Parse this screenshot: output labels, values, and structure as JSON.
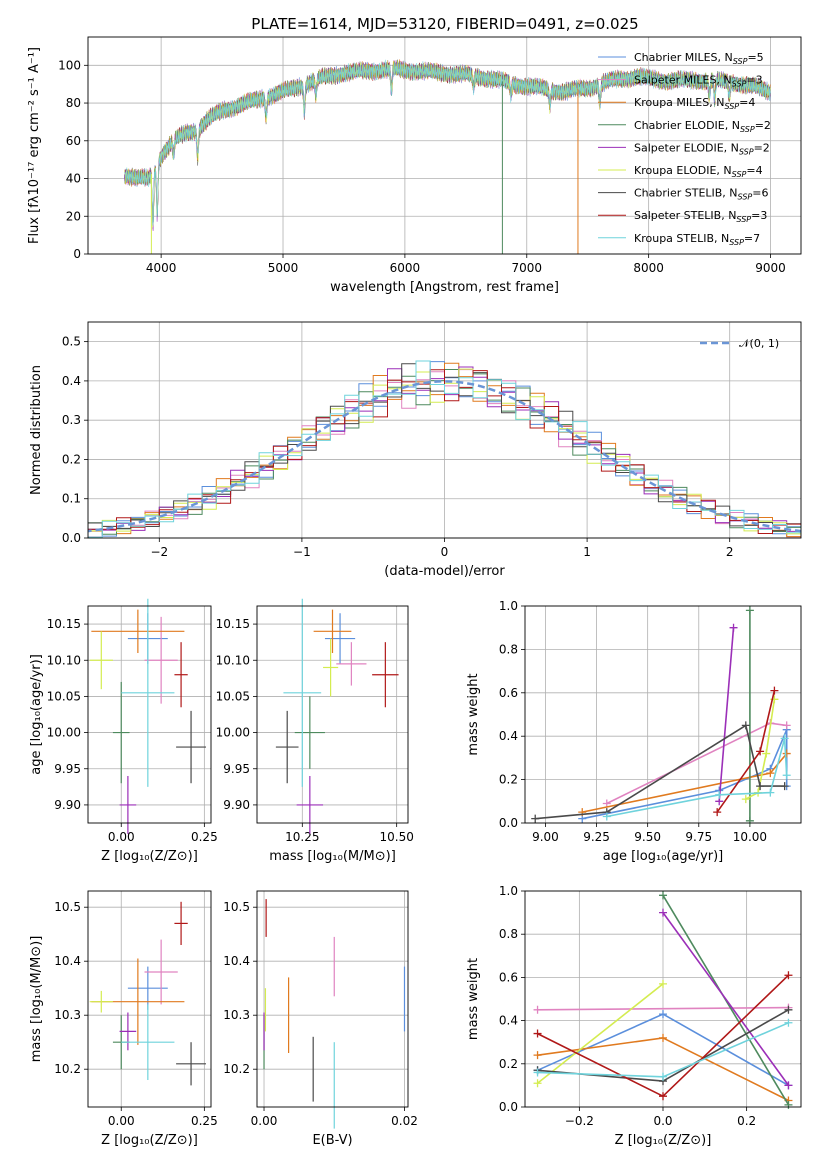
{
  "figure": {
    "title": "PLATE=1614, MJD=53120, FIBERID=0491, z=0.025"
  },
  "models": [
    {
      "name": "Chabrier MILES",
      "nssp": "5",
      "color": "#5b8fdc"
    },
    {
      "name": "Salpeter MILES",
      "nssp": "3",
      "color": "#e083c0"
    },
    {
      "name": "Kroupa MILES",
      "nssp": "4",
      "color": "#e07a1f"
    },
    {
      "name": "Chabrier ELODIE",
      "nssp": "2",
      "color": "#4e8a5e"
    },
    {
      "name": "Salpeter ELODIE",
      "nssp": "2",
      "color": "#9b2fb8"
    },
    {
      "name": "Kroupa ELODIE",
      "nssp": "4",
      "color": "#d4ec50"
    },
    {
      "name": "Chabrier STELIB",
      "nssp": "6",
      "color": "#4a4a4a"
    },
    {
      "name": "Salpeter STELIB",
      "nssp": "3",
      "color": "#b01818"
    },
    {
      "name": "Kroupa STELIB",
      "nssp": "7",
      "color": "#6fd3dc"
    }
  ],
  "chart_data": [
    {
      "id": "spectrum",
      "type": "line",
      "xlabel": "wavelength [Angstrom, rest frame]",
      "ylabel": "Flux [fλ10⁻¹⁷ erg cm⁻² s⁻¹ A⁻¹]",
      "xlim": [
        3400,
        9250
      ],
      "ylim": [
        0,
        115
      ],
      "xticks": [
        4000,
        5000,
        6000,
        7000,
        8000,
        9000
      ],
      "yticks": [
        0,
        20,
        40,
        60,
        80,
        100
      ],
      "continuum": [
        [
          3700,
          42
        ],
        [
          3800,
          40
        ],
        [
          3900,
          40
        ],
        [
          4000,
          52
        ],
        [
          4100,
          60
        ],
        [
          4200,
          64
        ],
        [
          4300,
          66
        ],
        [
          4400,
          72
        ],
        [
          4500,
          76
        ],
        [
          4700,
          80
        ],
        [
          4900,
          84
        ],
        [
          5100,
          88
        ],
        [
          5300,
          93
        ],
        [
          5500,
          96
        ],
        [
          5700,
          97
        ],
        [
          5900,
          98
        ],
        [
          6100,
          97
        ],
        [
          6300,
          96
        ],
        [
          6500,
          95
        ],
        [
          6700,
          93
        ],
        [
          6900,
          90
        ],
        [
          7100,
          88
        ],
        [
          7300,
          86
        ],
        [
          7500,
          88
        ],
        [
          7700,
          92
        ],
        [
          7900,
          94
        ],
        [
          8100,
          92
        ],
        [
          8300,
          92
        ],
        [
          8500,
          92
        ],
        [
          8700,
          91
        ],
        [
          8900,
          88
        ],
        [
          9000,
          86
        ]
      ],
      "absorption": [
        [
          3933,
          28
        ],
        [
          3968,
          26
        ],
        [
          4102,
          8
        ],
        [
          4300,
          14
        ],
        [
          4861,
          10
        ],
        [
          5175,
          14
        ],
        [
          5270,
          8
        ],
        [
          5890,
          12
        ],
        [
          6563,
          6
        ],
        [
          6870,
          6
        ],
        [
          7190,
          8
        ],
        [
          7600,
          10
        ],
        [
          8498,
          8
        ],
        [
          8542,
          10
        ],
        [
          8662,
          8
        ]
      ],
      "dropouts": [
        {
          "model": "Kroupa ELODIE",
          "x": 3920
        },
        {
          "model": "Chabrier ELODIE",
          "x": 6800
        },
        {
          "model": "Kroupa MILES",
          "x": 7420
        }
      ]
    },
    {
      "id": "residuals",
      "type": "histogram",
      "xlabel": "(data-model)/error",
      "ylabel": "Normed distribution",
      "xlim": [
        -2.5,
        2.5
      ],
      "ylim": [
        0,
        0.55
      ],
      "xticks": [
        -2,
        -1,
        0,
        1,
        2
      ],
      "yticks": [
        0.0,
        0.1,
        0.2,
        0.3,
        0.4,
        0.5
      ],
      "bin_width": 0.1,
      "reference": {
        "label": "𝒩(0, 1)",
        "mean": 0,
        "sigma": 1
      }
    },
    {
      "id": "age_vs_Z",
      "type": "errorbar",
      "xlabel": "Z [log₁₀(Z/Z⊙)]",
      "ylabel": "age  [log₁₀(age/yr)]",
      "xlim": [
        -0.1,
        0.27
      ],
      "ylim": [
        9.875,
        10.175
      ],
      "xticks": [
        0.0,
        0.25
      ],
      "yticks": [
        9.9,
        9.95,
        10.0,
        10.05,
        10.1,
        10.15
      ],
      "points": [
        {
          "model": "Chabrier MILES",
          "x": 0.08,
          "y": 10.13,
          "xerr": 0.06,
          "yerr": 0.035
        },
        {
          "model": "Salpeter MILES",
          "x": 0.12,
          "y": 10.1,
          "xerr": 0.05,
          "yerr": 0.06
        },
        {
          "model": "Kroupa MILES",
          "x": 0.05,
          "y": 10.14,
          "xerr": 0.14,
          "yerr": 0.03
        },
        {
          "model": "Chabrier ELODIE",
          "x": 0.0,
          "y": 10.0,
          "xerr": 0.025,
          "yerr": 0.07
        },
        {
          "model": "Salpeter ELODIE",
          "x": 0.02,
          "y": 9.9,
          "xerr": 0.025,
          "yerr": 0.04
        },
        {
          "model": "Kroupa ELODIE",
          "x": -0.06,
          "y": 10.1,
          "xerr": 0.035,
          "yerr": 0.04
        },
        {
          "model": "Chabrier STELIB",
          "x": 0.21,
          "y": 9.98,
          "xerr": 0.045,
          "yerr": 0.05
        },
        {
          "model": "Salpeter STELIB",
          "x": 0.18,
          "y": 10.08,
          "xerr": 0.02,
          "yerr": 0.045
        },
        {
          "model": "Kroupa STELIB",
          "x": 0.08,
          "y": 10.055,
          "xerr": 0.08,
          "yerr": 0.13
        }
      ]
    },
    {
      "id": "age_vs_mass",
      "type": "errorbar",
      "xlabel": "mass [log₁₀(M/M⊙)]",
      "ylabel": "",
      "xlim": [
        10.13,
        10.53
      ],
      "ylim": [
        9.875,
        10.175
      ],
      "xticks": [
        10.25,
        10.5
      ],
      "yticks": [
        9.9,
        9.95,
        10.0,
        10.05,
        10.1,
        10.15
      ],
      "points": [
        {
          "model": "Chabrier MILES",
          "x": 10.35,
          "y": 10.13,
          "xerr": 0.04,
          "yerr": 0.035
        },
        {
          "model": "Salpeter MILES",
          "x": 10.38,
          "y": 10.095,
          "xerr": 0.04,
          "yerr": 0.03
        },
        {
          "model": "Kroupa MILES",
          "x": 10.33,
          "y": 10.14,
          "xerr": 0.05,
          "yerr": 0.03
        },
        {
          "model": "Chabrier ELODIE",
          "x": 10.27,
          "y": 10.0,
          "xerr": 0.04,
          "yerr": 0.05
        },
        {
          "model": "Salpeter ELODIE",
          "x": 10.27,
          "y": 9.9,
          "xerr": 0.035,
          "yerr": 0.04
        },
        {
          "model": "Kroupa ELODIE",
          "x": 10.325,
          "y": 10.09,
          "xerr": 0.02,
          "yerr": 0.04
        },
        {
          "model": "Chabrier STELIB",
          "x": 10.21,
          "y": 9.98,
          "xerr": 0.03,
          "yerr": 0.05
        },
        {
          "model": "Salpeter STELIB",
          "x": 10.47,
          "y": 10.08,
          "xerr": 0.035,
          "yerr": 0.045
        },
        {
          "model": "Kroupa STELIB",
          "x": 10.25,
          "y": 10.055,
          "xerr": 0.05,
          "yerr": 0.13
        }
      ]
    },
    {
      "id": "weight_vs_age",
      "type": "line",
      "xlabel": "age  [log₁₀(age/yr)]",
      "ylabel": "mass weight",
      "xlim": [
        8.9,
        10.25
      ],
      "ylim": [
        0,
        1
      ],
      "xticks": [
        9.0,
        9.25,
        9.5,
        9.75,
        10.0
      ],
      "yticks": [
        0.0,
        0.2,
        0.4,
        0.6,
        0.8,
        1.0
      ],
      "series": [
        {
          "model": "Chabrier MILES",
          "points": [
            [
              9.18,
              0.02
            ],
            [
              9.85,
              0.15
            ],
            [
              10.1,
              0.25
            ],
            [
              10.18,
              0.43
            ],
            [
              10.18,
              0.17
            ]
          ]
        },
        {
          "model": "Salpeter MILES",
          "points": [
            [
              9.3,
              0.09
            ],
            [
              10.1,
              0.46
            ],
            [
              10.18,
              0.45
            ]
          ]
        },
        {
          "model": "Kroupa MILES",
          "points": [
            [
              9.18,
              0.05
            ],
            [
              10.1,
              0.23
            ],
            [
              10.18,
              0.32
            ]
          ]
        },
        {
          "model": "Chabrier ELODIE",
          "points": [
            [
              10.0,
              0.01
            ],
            [
              10.0,
              0.98
            ]
          ]
        },
        {
          "model": "Salpeter ELODIE",
          "points": [
            [
              9.85,
              0.1
            ],
            [
              9.92,
              0.9
            ]
          ]
        },
        {
          "model": "Kroupa ELODIE",
          "points": [
            [
              9.98,
              0.11
            ],
            [
              10.04,
              0.14
            ],
            [
              10.08,
              0.32
            ],
            [
              10.12,
              0.57
            ]
          ]
        },
        {
          "model": "Chabrier STELIB",
          "points": [
            [
              8.95,
              0.02
            ],
            [
              9.3,
              0.05
            ],
            [
              9.98,
              0.45
            ],
            [
              10.05,
              0.17
            ],
            [
              10.17,
              0.17
            ]
          ]
        },
        {
          "model": "Salpeter STELIB",
          "points": [
            [
              9.84,
              0.05
            ],
            [
              10.05,
              0.33
            ],
            [
              10.12,
              0.61
            ]
          ]
        },
        {
          "model": "Kroupa STELIB",
          "points": [
            [
              9.3,
              0.03
            ],
            [
              9.85,
              0.13
            ],
            [
              10.1,
              0.14
            ],
            [
              10.17,
              0.39
            ],
            [
              10.18,
              0.22
            ]
          ]
        }
      ]
    },
    {
      "id": "mass_vs_Z",
      "type": "errorbar",
      "xlabel": "Z [log₁₀(Z/Z⊙)]",
      "ylabel": "mass [log₁₀(M/M⊙)]",
      "xlim": [
        -0.1,
        0.27
      ],
      "ylim": [
        10.13,
        10.53
      ],
      "xticks": [
        0.0,
        0.25
      ],
      "yticks": [
        10.2,
        10.3,
        10.4,
        10.5
      ],
      "points": [
        {
          "model": "Chabrier MILES",
          "x": 0.08,
          "y": 10.35,
          "xerr": 0.06,
          "yerr": 0.04
        },
        {
          "model": "Salpeter MILES",
          "x": 0.12,
          "y": 10.38,
          "xerr": 0.05,
          "yerr": 0.06
        },
        {
          "model": "Kroupa MILES",
          "x": 0.05,
          "y": 10.325,
          "xerr": 0.14,
          "yerr": 0.08
        },
        {
          "model": "Chabrier ELODIE",
          "x": 0.0,
          "y": 10.25,
          "xerr": 0.025,
          "yerr": 0.05
        },
        {
          "model": "Salpeter ELODIE",
          "x": 0.02,
          "y": 10.27,
          "xerr": 0.025,
          "yerr": 0.035
        },
        {
          "model": "Kroupa ELODIE",
          "x": -0.06,
          "y": 10.325,
          "xerr": 0.035,
          "yerr": 0.02
        },
        {
          "model": "Chabrier STELIB",
          "x": 0.21,
          "y": 10.21,
          "xerr": 0.045,
          "yerr": 0.04
        },
        {
          "model": "Salpeter STELIB",
          "x": 0.18,
          "y": 10.47,
          "xerr": 0.02,
          "yerr": 0.04
        },
        {
          "model": "Kroupa STELIB",
          "x": 0.08,
          "y": 10.25,
          "xerr": 0.08,
          "yerr": 0.07
        }
      ]
    },
    {
      "id": "mass_vs_ebv",
      "type": "errorbar",
      "xlabel": "E(B-V)",
      "ylabel": "",
      "xlim": [
        -0.001,
        0.0205
      ],
      "ylim": [
        10.13,
        10.53
      ],
      "xticks": [
        0.0,
        0.02
      ],
      "yticks": [
        10.2,
        10.3,
        10.4,
        10.5
      ],
      "points": [
        {
          "model": "Chabrier MILES",
          "x": 0.02,
          "y": 10.33,
          "xerr": 0,
          "yerr": 0.06
        },
        {
          "model": "Salpeter MILES",
          "x": 0.01,
          "y": 10.39,
          "xerr": 0,
          "yerr": 0.055
        },
        {
          "model": "Kroupa MILES",
          "x": 0.0035,
          "y": 10.3,
          "xerr": 0,
          "yerr": 0.07
        },
        {
          "model": "Chabrier ELODIE",
          "x": 0.0,
          "y": 10.25,
          "xerr": 0,
          "yerr": 0.05
        },
        {
          "model": "Salpeter ELODIE",
          "x": 0.0,
          "y": 10.27,
          "xerr": 0,
          "yerr": 0.035
        },
        {
          "model": "Kroupa ELODIE",
          "x": 0.0002,
          "y": 10.31,
          "xerr": 0,
          "yerr": 0.04
        },
        {
          "model": "Chabrier STELIB",
          "x": 0.007,
          "y": 10.2,
          "xerr": 0,
          "yerr": 0.06
        },
        {
          "model": "Salpeter STELIB",
          "x": 0.0003,
          "y": 10.48,
          "xerr": 0,
          "yerr": 0.035
        },
        {
          "model": "Kroupa STELIB",
          "x": 0.01,
          "y": 10.17,
          "xerr": 0,
          "yerr": 0.08
        }
      ]
    },
    {
      "id": "weight_vs_Z",
      "type": "line",
      "xlabel": "Z [log₁₀(Z/Z⊙)]",
      "ylabel": "mass weight",
      "xlim": [
        -0.33,
        0.33
      ],
      "ylim": [
        0,
        1
      ],
      "xticks": [
        -0.2,
        0.0,
        0.2
      ],
      "yticks": [
        0.0,
        0.2,
        0.4,
        0.6,
        0.8,
        1.0
      ],
      "series": [
        {
          "model": "Chabrier MILES",
          "points": [
            [
              -0.3,
              0.17
            ],
            [
              0.0,
              0.43
            ],
            [
              0.3,
              0.1
            ]
          ]
        },
        {
          "model": "Salpeter MILES",
          "points": [
            [
              -0.3,
              0.45
            ],
            [
              0.3,
              0.46
            ]
          ]
        },
        {
          "model": "Kroupa MILES",
          "points": [
            [
              -0.3,
              0.24
            ],
            [
              0.0,
              0.32
            ],
            [
              0.3,
              0.03
            ]
          ]
        },
        {
          "model": "Chabrier ELODIE",
          "points": [
            [
              0.0,
              0.98
            ],
            [
              0.3,
              0.01
            ]
          ]
        },
        {
          "model": "Salpeter ELODIE",
          "points": [
            [
              0.0,
              0.9
            ],
            [
              0.3,
              0.1
            ]
          ]
        },
        {
          "model": "Kroupa ELODIE",
          "points": [
            [
              -0.3,
              0.11
            ],
            [
              0.0,
              0.57
            ]
          ]
        },
        {
          "model": "Chabrier STELIB",
          "points": [
            [
              -0.3,
              0.17
            ],
            [
              0.0,
              0.12
            ],
            [
              0.3,
              0.45
            ]
          ]
        },
        {
          "model": "Salpeter STELIB",
          "points": [
            [
              -0.3,
              0.34
            ],
            [
              0.0,
              0.05
            ],
            [
              0.3,
              0.61
            ]
          ]
        },
        {
          "model": "Kroupa STELIB",
          "points": [
            [
              -0.3,
              0.16
            ],
            [
              0.0,
              0.14
            ],
            [
              0.3,
              0.39
            ]
          ]
        }
      ]
    }
  ]
}
